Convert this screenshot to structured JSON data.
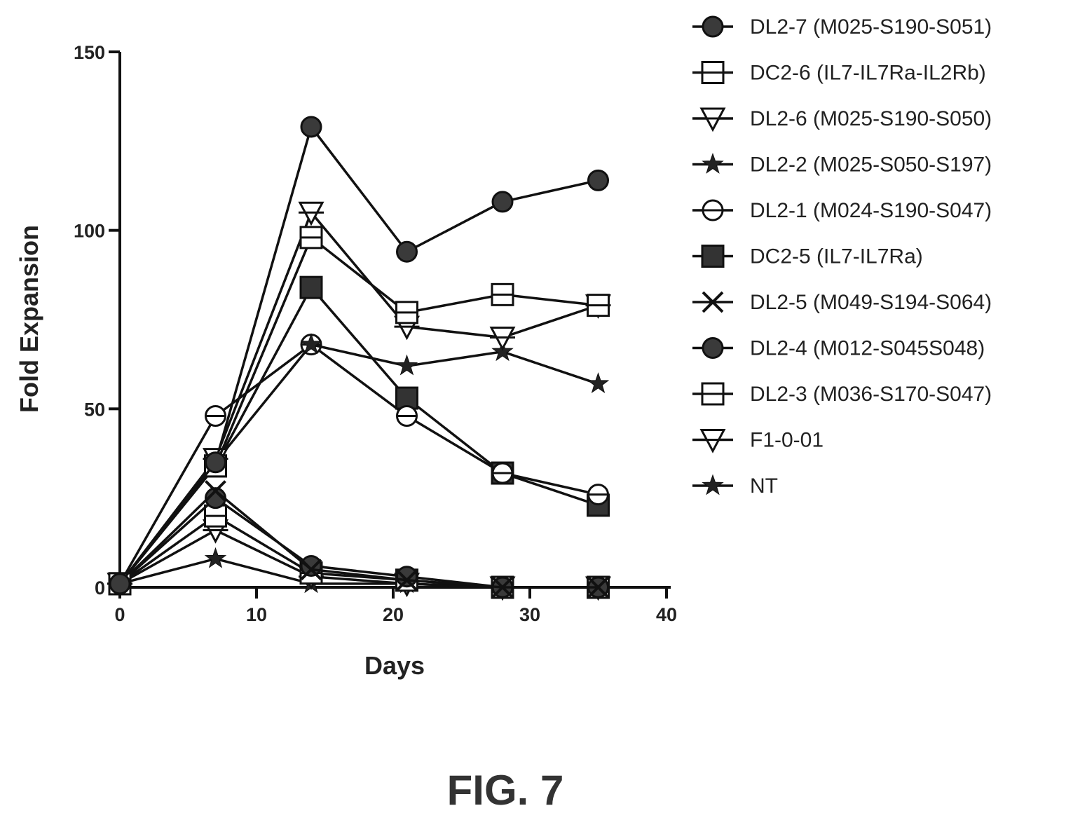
{
  "figure_caption": "FIG. 7",
  "chart_data": {
    "type": "line",
    "xlabel": "Days",
    "ylabel": "Fold Expansion",
    "xlim": [
      0,
      40
    ],
    "ylim": [
      0,
      150
    ],
    "x_ticks": [
      0,
      10,
      20,
      30,
      40
    ],
    "y_ticks": [
      0,
      50,
      100,
      150
    ],
    "x_tick_labels": [
      "0",
      "10",
      "20",
      "30",
      "40"
    ],
    "y_tick_labels": [
      "0",
      "50",
      "100",
      "150"
    ],
    "grid": false,
    "legend_position": "right",
    "series": [
      {
        "name": "DL2-7 (M025-S190-S051)",
        "marker": "circle-filled",
        "x": [
          0,
          7,
          14,
          21,
          28,
          35
        ],
        "y": [
          1,
          35,
          129,
          94,
          108,
          114
        ]
      },
      {
        "name": "DC2-6 (IL7-IL7Ra-IL2Rb)",
        "marker": "square-open-bar",
        "x": [
          0,
          7,
          14,
          21,
          28,
          35
        ],
        "y": [
          1,
          34,
          98,
          77,
          82,
          79
        ]
      },
      {
        "name": "DL2-6 (M025-S190-S050)",
        "marker": "triangle-down-open-bar",
        "x": [
          0,
          7,
          14,
          21,
          28,
          35
        ],
        "y": [
          1,
          36,
          105,
          73,
          70,
          79
        ]
      },
      {
        "name": "DL2-2 (M025-S050-S197)",
        "marker": "star",
        "x": [
          0,
          7,
          14,
          21,
          28,
          35
        ],
        "y": [
          1,
          35,
          68,
          62,
          66,
          57
        ]
      },
      {
        "name": "DL2-1 (M024-S190-S047)",
        "marker": "circle-open-bar",
        "x": [
          0,
          7,
          14,
          21,
          28,
          35
        ],
        "y": [
          1,
          48,
          68,
          48,
          32,
          26
        ]
      },
      {
        "name": "DC2-5 (IL7-IL7Ra)",
        "marker": "square-filled",
        "x": [
          0,
          7,
          14,
          21,
          28,
          35
        ],
        "y": [
          1,
          34,
          84,
          53,
          32,
          23
        ]
      },
      {
        "name": "DL2-5 (M049-S194-S064)",
        "marker": "x",
        "x": [
          0,
          7,
          14,
          21,
          28,
          35
        ],
        "y": [
          1,
          27,
          5,
          2,
          0,
          0
        ]
      },
      {
        "name": "DL2-4 (M012-S045S048)",
        "marker": "circle-filled",
        "x": [
          0,
          7,
          14,
          21,
          28,
          35
        ],
        "y": [
          1,
          25,
          6,
          3,
          0,
          0
        ]
      },
      {
        "name": "DL2-3 (M036-S170-S047)",
        "marker": "square-open-bar",
        "x": [
          0,
          7,
          14,
          21,
          28,
          35
        ],
        "y": [
          1,
          20,
          4,
          2,
          0,
          0
        ]
      },
      {
        "name": "F1-0-01",
        "marker": "triangle-down-open-bar",
        "x": [
          0,
          7,
          14,
          21,
          28,
          35
        ],
        "y": [
          1,
          16,
          3,
          1,
          0,
          0
        ]
      },
      {
        "name": "NT",
        "marker": "star",
        "x": [
          0,
          7,
          14,
          21,
          28,
          35
        ],
        "y": [
          1,
          8,
          1,
          1,
          0,
          0
        ]
      }
    ]
  }
}
